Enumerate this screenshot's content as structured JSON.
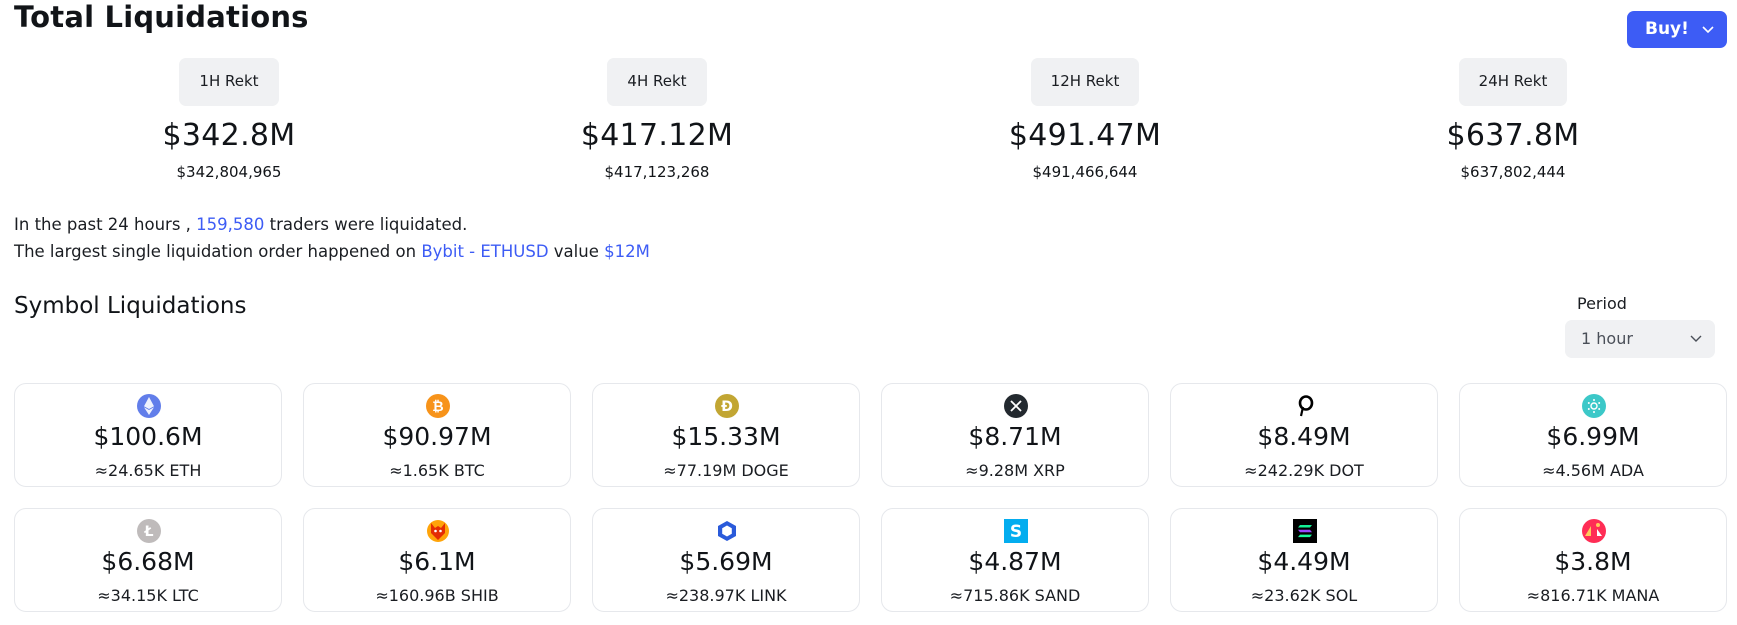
{
  "header": {
    "title": "Total Liquidations",
    "buy_label": "Buy!"
  },
  "stats": [
    {
      "label": "1H Rekt",
      "value": "$342.8M",
      "exact": "$342,804,965"
    },
    {
      "label": "4H Rekt",
      "value": "$417.12M",
      "exact": "$417,123,268"
    },
    {
      "label": "12H Rekt",
      "value": "$491.47M",
      "exact": "$491,466,644"
    },
    {
      "label": "24H Rekt",
      "value": "$637.8M",
      "exact": "$637,802,444"
    }
  ],
  "summary": {
    "line1_pre": "In the past 24 hours ,",
    "traders_count": "159,580",
    "line1_post": "traders were liquidated.",
    "line2_pre": "The largest single liquidation order happened on",
    "exchange_pair": "Bybit - ETHUSD",
    "value_word": "value",
    "value": "$12M"
  },
  "symbols": {
    "title": "Symbol Liquidations",
    "period_label": "Period",
    "period_value": "1 hour",
    "cards": [
      {
        "icon": "eth-icon",
        "color": "#627eea",
        "amount": "$100.6M",
        "units": "≈24.65K ETH"
      },
      {
        "icon": "btc-icon",
        "color": "#f7931a",
        "amount": "$90.97M",
        "units": "≈1.65K BTC"
      },
      {
        "icon": "doge-icon",
        "color": "#c2a633",
        "amount": "$15.33M",
        "units": "≈77.19M DOGE"
      },
      {
        "icon": "xrp-icon",
        "color": "#23292f",
        "amount": "$8.71M",
        "units": "≈9.28M XRP"
      },
      {
        "icon": "dot-icon",
        "color": "#000000",
        "amount": "$8.49M",
        "units": "≈242.29K DOT"
      },
      {
        "icon": "ada-icon",
        "color": "#3cc8c8",
        "amount": "$6.99M",
        "units": "≈4.56M ADA"
      },
      {
        "icon": "ltc-icon",
        "color": "#bfbbbb",
        "amount": "$6.68M",
        "units": "≈34.15K LTC"
      },
      {
        "icon": "shib-icon",
        "color": "#e42d04",
        "amount": "$6.1M",
        "units": "≈160.96B SHIB"
      },
      {
        "icon": "link-icon",
        "color": "#2a5ada",
        "amount": "$5.69M",
        "units": "≈238.97K LINK"
      },
      {
        "icon": "sand-icon",
        "color": "#04adef",
        "amount": "$4.87M",
        "units": "≈715.86K SAND"
      },
      {
        "icon": "sol-icon",
        "color": "#000000",
        "amount": "$4.49M",
        "units": "≈23.62K SOL"
      },
      {
        "icon": "mana-icon",
        "color": "#ff2d55",
        "amount": "$3.8M",
        "units": "≈816.71K MANA"
      }
    ]
  }
}
